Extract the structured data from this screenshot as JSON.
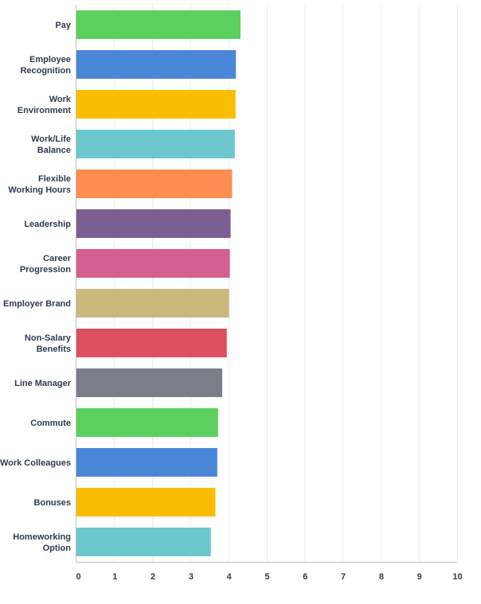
{
  "chart_data": {
    "type": "bar",
    "orientation": "horizontal",
    "categories": [
      [
        "Pay"
      ],
      [
        "Employee",
        "Recognition"
      ],
      [
        "Work",
        "Environment"
      ],
      [
        "Work/Life",
        "Balance"
      ],
      [
        "Flexible",
        "Working Hours"
      ],
      [
        "Leadership"
      ],
      [
        "Career",
        "Progression"
      ],
      [
        "Employer Brand"
      ],
      [
        "Non-Salary",
        "Benefits"
      ],
      [
        "Line Manager"
      ],
      [
        "Commute"
      ],
      [
        "Work Colleagues"
      ],
      [
        "Bonuses"
      ],
      [
        "Homeworking",
        "Option"
      ]
    ],
    "values": [
      4.32,
      4.2,
      4.19,
      4.17,
      4.1,
      4.06,
      4.04,
      4.02,
      3.96,
      3.84,
      3.73,
      3.71,
      3.66,
      3.54
    ],
    "colors": [
      "#5cd05c",
      "#4a86d8",
      "#fabd00",
      "#6cc8cc",
      "#ff8c50",
      "#7b5e92",
      "#d45f91",
      "#c9b97c",
      "#dc4f5e",
      "#7a7f87",
      "#5cd05c",
      "#4a86d8",
      "#fabd00",
      "#6cc8cc"
    ],
    "xlim": [
      0,
      10
    ],
    "xticks": [
      "0",
      "1",
      "2",
      "3",
      "4",
      "5",
      "6",
      "7",
      "8",
      "9",
      "10"
    ],
    "grid": true,
    "title": "",
    "xlabel": "",
    "ylabel": ""
  }
}
